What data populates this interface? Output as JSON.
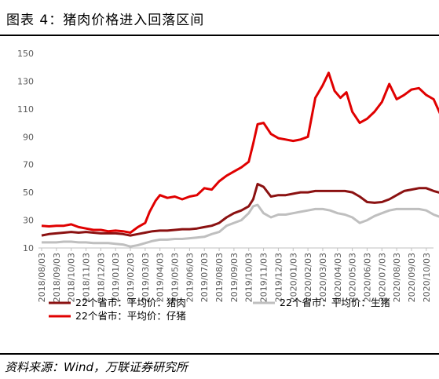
{
  "header": {
    "title": "图表 4：猪肉价格进入回落区间"
  },
  "footer": {
    "source": "资料来源：Wind，万联证券研究所"
  },
  "chart_data": {
    "type": "line",
    "title": "图表 4：猪肉价格进入回落区间",
    "xlabel": "",
    "ylabel": "",
    "ylim": [
      10,
      150
    ],
    "yticks": [
      10,
      30,
      50,
      70,
      90,
      110,
      130,
      150
    ],
    "grid": false,
    "legend_position": "bottom",
    "x_tick_labels": [
      "2018/08/03",
      "2018/09/03",
      "2018/10/03",
      "2018/11/03",
      "2018/12/03",
      "2019/01/03",
      "2019/02/03",
      "2019/03/03",
      "2019/04/03",
      "2019/05/03",
      "2019/06/03",
      "2019/07/03",
      "2019/08/03",
      "2019/09/03",
      "2019/10/03",
      "2019/11/03",
      "2019/12/03",
      "2020/01/03",
      "2020/02/03",
      "2020/03/03",
      "2020/04/03",
      "2020/05/03",
      "2020/06/03",
      "2020/07/03",
      "2020/08/03",
      "2020/09/03",
      "2020/10/03"
    ],
    "series": [
      {
        "name": "22个省市：平均价：猪肉",
        "color": "#8B1111",
        "points": [
          [
            0,
            19
          ],
          [
            0.5,
            20
          ],
          [
            1,
            20.5
          ],
          [
            1.5,
            21
          ],
          [
            2,
            21.5
          ],
          [
            2.5,
            21
          ],
          [
            3,
            21.5
          ],
          [
            3.5,
            21
          ],
          [
            4,
            20.5
          ],
          [
            4.5,
            20.5
          ],
          [
            5,
            20.5
          ],
          [
            5.5,
            20
          ],
          [
            6,
            19
          ],
          [
            6.5,
            20
          ],
          [
            7,
            21
          ],
          [
            7.5,
            22
          ],
          [
            8,
            22.5
          ],
          [
            8.5,
            22.5
          ],
          [
            9,
            23
          ],
          [
            9.5,
            23.5
          ],
          [
            10,
            23.5
          ],
          [
            10.5,
            24
          ],
          [
            11,
            25
          ],
          [
            11.5,
            26
          ],
          [
            12,
            28
          ],
          [
            12.5,
            32
          ],
          [
            13,
            35
          ],
          [
            13.5,
            37
          ],
          [
            14,
            40
          ],
          [
            14.3,
            45
          ],
          [
            14.6,
            56
          ],
          [
            15,
            54
          ],
          [
            15.5,
            47
          ],
          [
            16,
            48
          ],
          [
            16.5,
            48
          ],
          [
            17,
            49
          ],
          [
            17.5,
            50
          ],
          [
            18,
            50
          ],
          [
            18.5,
            51
          ],
          [
            19,
            51
          ],
          [
            19.5,
            51
          ],
          [
            20,
            51
          ],
          [
            20.5,
            51
          ],
          [
            21,
            50
          ],
          [
            21.5,
            47
          ],
          [
            22,
            43
          ],
          [
            22.5,
            42.5
          ],
          [
            23,
            43
          ],
          [
            23.5,
            45
          ],
          [
            24,
            48
          ],
          [
            24.5,
            51
          ],
          [
            25,
            52
          ],
          [
            25.5,
            53
          ],
          [
            26,
            53
          ],
          [
            26.5,
            51
          ],
          [
            27,
            49.5
          ]
        ]
      },
      {
        "name": "22个省市：平均价：生猪",
        "color": "#BFBFBF",
        "points": [
          [
            0,
            14
          ],
          [
            0.5,
            14
          ],
          [
            1,
            14
          ],
          [
            1.5,
            14.5
          ],
          [
            2,
            14.5
          ],
          [
            2.5,
            14
          ],
          [
            3,
            14
          ],
          [
            3.5,
            13.5
          ],
          [
            4,
            13.5
          ],
          [
            4.5,
            13.5
          ],
          [
            5,
            13
          ],
          [
            5.5,
            12.5
          ],
          [
            6,
            11
          ],
          [
            6.5,
            12
          ],
          [
            7,
            13.5
          ],
          [
            7.5,
            15
          ],
          [
            8,
            16
          ],
          [
            8.5,
            16
          ],
          [
            9,
            16.5
          ],
          [
            9.5,
            16.5
          ],
          [
            10,
            17
          ],
          [
            10.5,
            17.5
          ],
          [
            11,
            18
          ],
          [
            11.5,
            20
          ],
          [
            12,
            21.5
          ],
          [
            12.5,
            26
          ],
          [
            13,
            28
          ],
          [
            13.5,
            30
          ],
          [
            14,
            35
          ],
          [
            14.3,
            40
          ],
          [
            14.6,
            41
          ],
          [
            15,
            35
          ],
          [
            15.5,
            32
          ],
          [
            16,
            34
          ],
          [
            16.5,
            34
          ],
          [
            17,
            35
          ],
          [
            17.5,
            36
          ],
          [
            18,
            37
          ],
          [
            18.5,
            38
          ],
          [
            19,
            38
          ],
          [
            19.5,
            37
          ],
          [
            20,
            35
          ],
          [
            20.5,
            34
          ],
          [
            21,
            32
          ],
          [
            21.5,
            28
          ],
          [
            22,
            30
          ],
          [
            22.5,
            33
          ],
          [
            23,
            35
          ],
          [
            23.5,
            37
          ],
          [
            24,
            38
          ],
          [
            24.5,
            38
          ],
          [
            25,
            38
          ],
          [
            25.5,
            38
          ],
          [
            26,
            37
          ],
          [
            26.5,
            34
          ],
          [
            27,
            32
          ]
        ]
      },
      {
        "name": "22个省市：平均价：仔猪",
        "color": "#E00000",
        "points": [
          [
            0,
            26
          ],
          [
            0.5,
            25.5
          ],
          [
            1,
            26
          ],
          [
            1.5,
            26
          ],
          [
            2,
            27
          ],
          [
            2.5,
            25
          ],
          [
            3,
            24
          ],
          [
            3.5,
            23
          ],
          [
            4,
            23
          ],
          [
            4.5,
            22
          ],
          [
            5,
            22.5
          ],
          [
            5.5,
            22
          ],
          [
            6,
            21
          ],
          [
            6.5,
            25
          ],
          [
            7,
            28
          ],
          [
            7.3,
            36
          ],
          [
            7.7,
            44
          ],
          [
            8,
            48
          ],
          [
            8.5,
            46
          ],
          [
            9,
            47
          ],
          [
            9.5,
            45
          ],
          [
            10,
            47
          ],
          [
            10.5,
            48
          ],
          [
            11,
            53
          ],
          [
            11.5,
            52
          ],
          [
            12,
            58
          ],
          [
            12.5,
            62
          ],
          [
            13,
            65
          ],
          [
            13.5,
            68
          ],
          [
            14,
            72
          ],
          [
            14.3,
            85
          ],
          [
            14.6,
            99
          ],
          [
            15,
            100
          ],
          [
            15.5,
            92
          ],
          [
            16,
            89
          ],
          [
            16.5,
            88
          ],
          [
            17,
            87
          ],
          [
            17.5,
            88
          ],
          [
            18,
            90
          ],
          [
            18.5,
            118
          ],
          [
            19,
            127
          ],
          [
            19.4,
            136
          ],
          [
            19.8,
            123
          ],
          [
            20.2,
            118
          ],
          [
            20.6,
            122
          ],
          [
            21,
            108
          ],
          [
            21.5,
            100
          ],
          [
            22,
            103
          ],
          [
            22.5,
            108
          ],
          [
            23,
            115
          ],
          [
            23.5,
            128
          ],
          [
            24,
            117
          ],
          [
            24.5,
            120
          ],
          [
            25,
            124
          ],
          [
            25.5,
            125
          ],
          [
            26,
            120
          ],
          [
            26.5,
            117
          ],
          [
            27,
            105
          ]
        ]
      }
    ]
  }
}
